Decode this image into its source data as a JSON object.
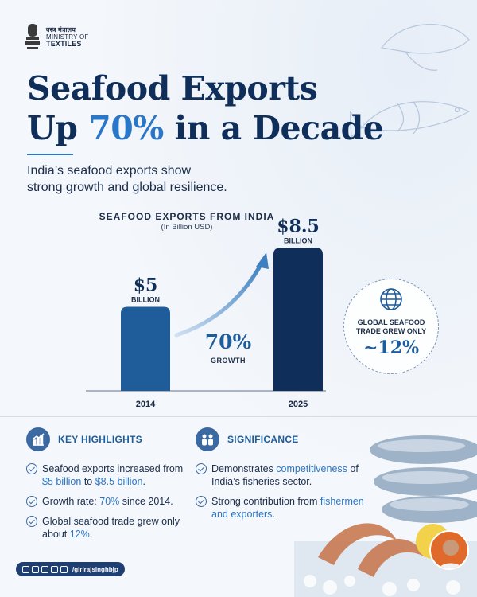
{
  "header": {
    "ministry_hindi": "वस्त्र मंत्रालय",
    "ministry_line1": "MINISTRY OF",
    "ministry_line2": "TEXTILES",
    "emblem_icon": "state-emblem-icon",
    "title_part1": "Seafood Exports",
    "title_part2_pre": "Up ",
    "title_accent": "70%",
    "title_part2_post": " in a Decade",
    "subtitle_line1": "India’s seafood exports show",
    "subtitle_line2": "strong growth and global resilience."
  },
  "chart_data": {
    "type": "bar",
    "title": "SEAFOOD EXPORTS FROM INDIA",
    "unit": "(In Billion USD)",
    "categories": [
      "2014",
      "2025"
    ],
    "values": [
      5,
      8.5
    ],
    "value_labels": [
      "$5",
      "$8.5"
    ],
    "value_sublabels": [
      "BILLION",
      "BILLION"
    ],
    "bar_colors": [
      "#1f5d9a",
      "#0f2f5a"
    ],
    "ylim": [
      0,
      9
    ],
    "growth_pct": "70%",
    "growth_label": "GROWTH"
  },
  "global_callout": {
    "icon": "globe-icon",
    "line1": "GLOBAL SEAFOOD",
    "line2": "TRADE GREW ONLY",
    "value": "~12%"
  },
  "highlights": {
    "icon": "growth-chart-icon",
    "title": "KEY HIGHLIGHTS",
    "items": [
      {
        "pre": "Seafood exports increased from ",
        "a": "$5 billion",
        "mid": " to ",
        "b": "$8.5 billion",
        "post": "."
      },
      {
        "pre": "Growth rate: ",
        "a": "70%",
        "mid": " since 2014.",
        "b": "",
        "post": ""
      },
      {
        "pre": "Global seafood trade grew only about ",
        "a": "12%",
        "mid": ".",
        "b": "",
        "post": ""
      }
    ]
  },
  "significance": {
    "icon": "people-icon",
    "title": "SIGNIFICANCE",
    "items": [
      {
        "pre": "Demonstrates ",
        "a": "competitiveness",
        "mid": " of India’s fisheries sector.",
        "b": "",
        "post": ""
      },
      {
        "pre": "Strong contribution from ",
        "a": "fishermen and exporters",
        "mid": ".",
        "b": "",
        "post": ""
      }
    ]
  },
  "footer": {
    "social_icons": [
      "instagram-icon",
      "threads-icon",
      "linkedin-icon",
      "x-icon",
      "facebook-icon"
    ],
    "handle": "/girirajsinghbjp",
    "avatar": "minister-avatar"
  },
  "colors": {
    "navy": "#0f2f5a",
    "blue": "#1f5d9a",
    "accent": "#2a77c8",
    "background": "#f4f7fb"
  }
}
